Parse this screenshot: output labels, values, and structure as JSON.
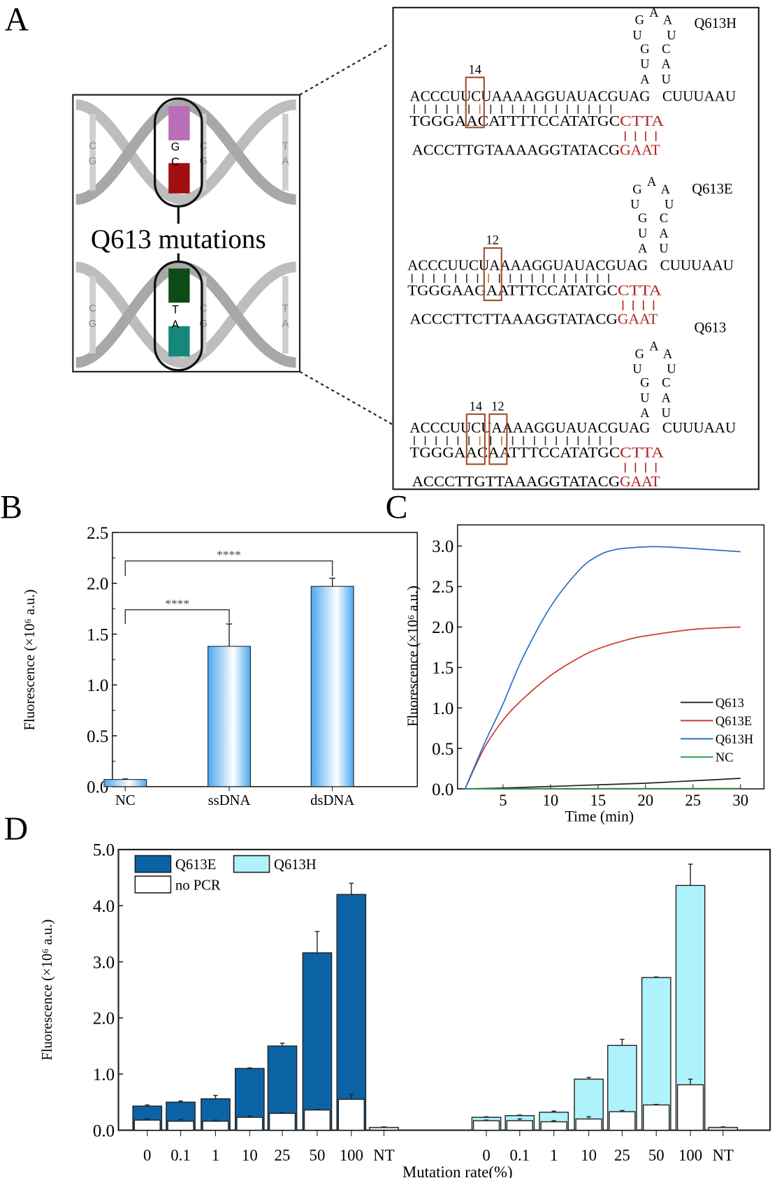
{
  "panel_labels": {
    "a": "A",
    "b": "B",
    "c": "C",
    "d": "D"
  },
  "panel_a": {
    "title": "Q613 mutations",
    "helix_top": {
      "left_pair": [
        "C",
        "G"
      ],
      "center_pair": [
        "G",
        "C"
      ],
      "right_pair_1": [
        "C",
        "G"
      ],
      "right_pair_2": [
        "T",
        "A"
      ]
    },
    "helix_bottom": {
      "left_pair": [
        "C",
        "G"
      ],
      "center_pair": [
        "T",
        "A"
      ],
      "right_pair_1": [
        "C",
        "G"
      ],
      "right_pair_2": [
        "T",
        "A"
      ]
    },
    "colors": {
      "purple": "#b86fb8",
      "red": "#a30f0f",
      "dark_green": "#0d4a17",
      "teal": "#17877c",
      "sequence_red": "#b22222",
      "box": "#a0522d"
    },
    "blocks": [
      {
        "name": "Q613H",
        "positions": [
          "14"
        ],
        "crrna": "ACCCUUCUAAAAGGUAUACGUAG",
        "crrna_tail": "CUUUAAU",
        "loop_left": [
          "A",
          "U",
          "G",
          "U",
          "G"
        ],
        "loop_top": "A",
        "loop_right": [
          "U",
          "A",
          "C",
          "U",
          "A"
        ],
        "target": "TGGGAACATTTTCCATATGC",
        "target_red": "CTTA",
        "probe": "ACCCTTGTAAAAGGTATACG",
        "probe_red": "GAAT"
      },
      {
        "name": "Q613E",
        "positions": [
          "12"
        ],
        "crrna": "ACCCUUCUAAAAGGUAUACGUAG",
        "crrna_tail": "CUUUAAU",
        "loop_left": [
          "A",
          "U",
          "G",
          "U",
          "G"
        ],
        "loop_top": "A",
        "loop_right": [
          "U",
          "A",
          "C",
          "U",
          "A"
        ],
        "target": "TGGGAAGAATTTCCATATGC",
        "target_red": "CTTA",
        "probe": "ACCCTTCTTAAAGGTATACG",
        "probe_red": "GAAT"
      },
      {
        "name": "Q613",
        "positions": [
          "14",
          "12"
        ],
        "crrna": "ACCCUUCUAAAAGGUAUACGUAG",
        "crrna_tail": "CUUUAAU",
        "loop_left": [
          "A",
          "U",
          "G",
          "U",
          "G"
        ],
        "loop_top": "A",
        "loop_right": [
          "U",
          "A",
          "C",
          "U",
          "A"
        ],
        "target": "TGGGAACAATTTCCATATGC",
        "target_red": "CTTA",
        "probe": "ACCCTTGTTAAAGGTATACG",
        "probe_red": "GAAT"
      }
    ]
  },
  "chart_data": [
    {
      "panel": "B",
      "type": "bar",
      "categories": [
        "NC",
        "ssDNA",
        "dsDNA"
      ],
      "values": [
        0.07,
        1.38,
        1.97
      ],
      "errors": [
        0.005,
        0.22,
        0.08
      ],
      "ylabel": "Fluorescence (×10⁶ a.u.)",
      "xlabel": "",
      "ylim": [
        0,
        2.5
      ],
      "yticks": [
        "0.0",
        "0.5",
        "1.0",
        "1.5",
        "2.0",
        "2.5"
      ],
      "bar_color": "#4aa8f0",
      "significance": [
        {
          "from": "NC",
          "to": "ssDNA",
          "label": "****",
          "level": 1.74
        },
        {
          "from": "NC",
          "to": "dsDNA",
          "label": "****",
          "level": 2.22
        }
      ],
      "grid": false
    },
    {
      "panel": "C",
      "type": "line",
      "xlabel": "Time (min)",
      "ylabel": "Fluorescence (×10⁶ a.u.)",
      "xlim": [
        0,
        32
      ],
      "ylim": [
        0,
        3.25
      ],
      "xticks": [
        "5",
        "10",
        "15",
        "20",
        "25",
        "30"
      ],
      "yticks": [
        "0.0",
        "0.5",
        "1.0",
        "1.5",
        "2.0",
        "2.5",
        "3.0"
      ],
      "legend_position": "bottom-right",
      "grid": false,
      "series": [
        {
          "name": "Q613",
          "color": "#222222",
          "x": [
            1,
            5,
            10,
            15,
            20,
            25,
            30
          ],
          "y": [
            0,
            0.01,
            0.03,
            0.05,
            0.07,
            0.1,
            0.13
          ]
        },
        {
          "name": "Q613E",
          "color": "#d03a2f",
          "x": [
            1,
            3,
            5,
            7,
            10,
            13,
            15,
            18,
            20,
            25,
            30
          ],
          "y": [
            0,
            0.5,
            0.85,
            1.1,
            1.4,
            1.62,
            1.73,
            1.84,
            1.89,
            1.97,
            2.0
          ]
        },
        {
          "name": "Q613H",
          "color": "#2f6fc8",
          "x": [
            1,
            3,
            5,
            7,
            10,
            13,
            15,
            17,
            20,
            22,
            25,
            30
          ],
          "y": [
            0,
            0.55,
            1.05,
            1.6,
            2.25,
            2.7,
            2.88,
            2.96,
            2.99,
            2.99,
            2.97,
            2.93
          ]
        },
        {
          "name": "NC",
          "color": "#2e9a4a",
          "x": [
            1,
            10,
            20,
            30
          ],
          "y": [
            0,
            0.003,
            0.004,
            0.005
          ]
        }
      ]
    },
    {
      "panel": "D",
      "type": "bar",
      "xlabel": "Mutation rate(%)",
      "ylabel": "Fluorescence (×10⁶ a.u.)",
      "ylim": [
        0,
        5
      ],
      "yticks": [
        "0.0",
        "1.0",
        "2.0",
        "3.0",
        "4.0",
        "5.0"
      ],
      "categories": [
        "0",
        "0.1",
        "1",
        "10",
        "25",
        "50",
        "100",
        "NT"
      ],
      "legend_position": "top-left",
      "grid": false,
      "groups": [
        {
          "name": "Q613E",
          "color": "#0b63a5",
          "values": [
            0.43,
            0.5,
            0.56,
            1.1,
            1.5,
            3.16,
            4.2,
            0.05
          ],
          "errors": [
            0.02,
            0.02,
            0.06,
            0.01,
            0.05,
            0.38,
            0.2,
            0.01
          ],
          "no_pcr_values": [
            0.18,
            0.16,
            0.16,
            0.23,
            0.3,
            0.36,
            0.55
          ],
          "no_pcr_errors": [
            0.02,
            0.03,
            0.02,
            0.02,
            0.01,
            0.01,
            0.09
          ]
        },
        {
          "name": "Q613H",
          "color": "#aef2fb",
          "values": [
            0.23,
            0.26,
            0.32,
            0.91,
            1.51,
            2.72,
            4.36,
            0.05
          ],
          "errors": [
            0.01,
            0.01,
            0.02,
            0.03,
            0.11,
            0.01,
            0.38,
            0.01
          ],
          "no_pcr_values": [
            0.17,
            0.17,
            0.15,
            0.2,
            0.33,
            0.45,
            0.81
          ],
          "no_pcr_errors": [
            0.01,
            0.03,
            0.02,
            0.04,
            0.02,
            0.01,
            0.1
          ]
        }
      ],
      "legend": [
        "Q613E",
        "Q613H",
        "no PCR"
      ],
      "no_pcr_color": "#ffffff"
    }
  ]
}
